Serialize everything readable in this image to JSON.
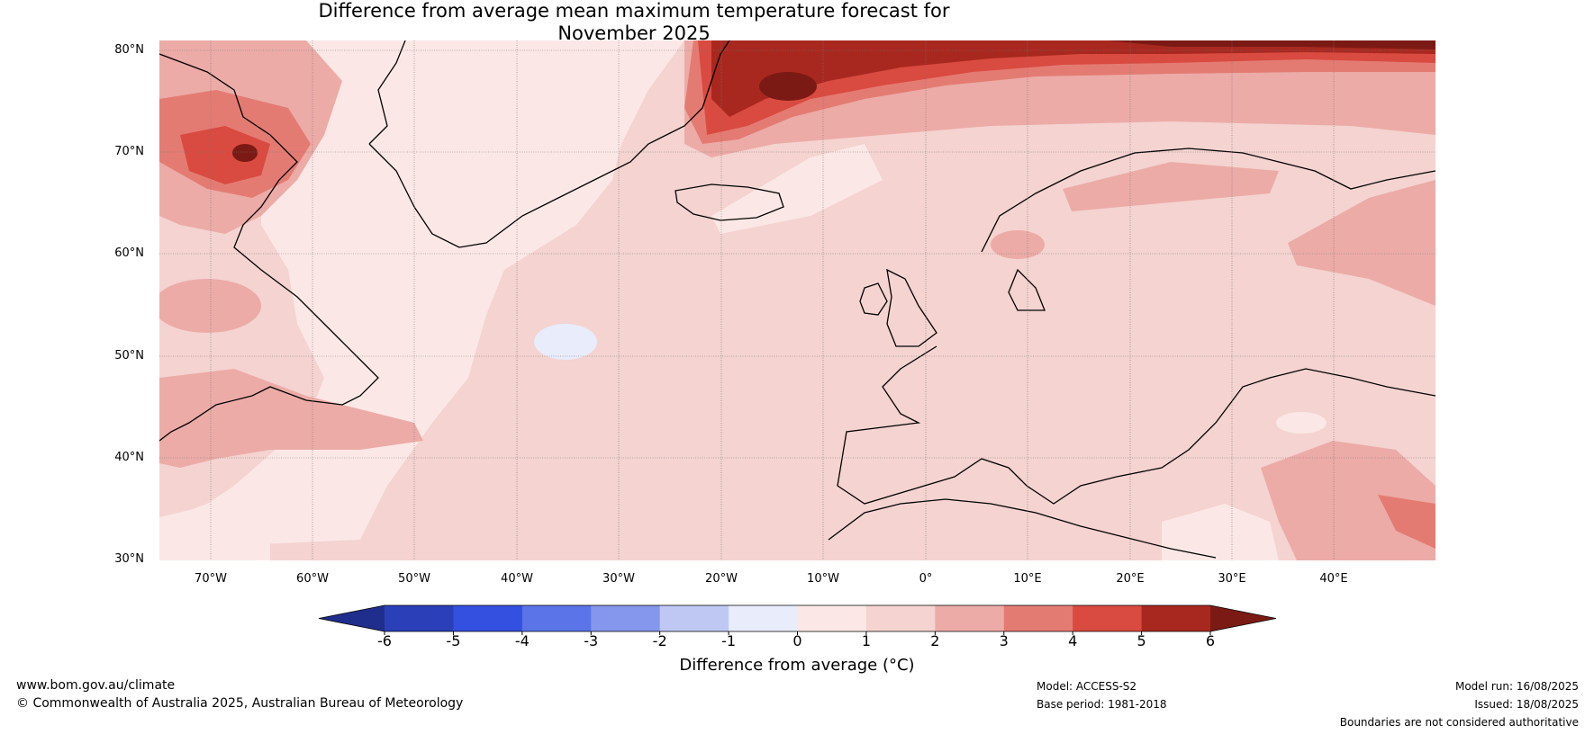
{
  "title_line1": "Difference from average mean maximum temperature forecast for",
  "title_line2": "November 2025",
  "lat_labels": [
    "80°N",
    "70°N",
    "60°N",
    "50°N",
    "40°N",
    "30°N"
  ],
  "lon_labels": [
    "70°W",
    "60°W",
    "50°W",
    "40°W",
    "30°W",
    "20°W",
    "10°W",
    "0°",
    "10°E",
    "20°E",
    "30°E",
    "40°E"
  ],
  "colorbar": {
    "ticks": [
      "-6",
      "-5",
      "-4",
      "-3",
      "-2",
      "-1",
      "0",
      "1",
      "2",
      "3",
      "4",
      "5",
      "6"
    ],
    "label": "Difference from average (",
    "unit": "°C",
    "label_end": ")",
    "colors": [
      "#1f2e8c",
      "#2a3fb8",
      "#3450e0",
      "#5b74e8",
      "#8597ec",
      "#bec8f3",
      "#e8ecfb",
      "#fbe8e6",
      "#f4d3d0",
      "#ecaba7",
      "#e47b73",
      "#d94a40",
      "#a8281f",
      "#7b1a14"
    ]
  },
  "footer": {
    "website": "www.bom.gov.au/climate",
    "copyright": "© Commonwealth of Australia 2025, Australian Bureau of Meteorology",
    "model": "Model: ACCESS-S2",
    "base_period": "Base period: 1981-2018",
    "model_run": "Model run: 16/08/2025",
    "issued": "Issued: 18/08/2025",
    "disclaimer": "Boundaries are not considered authoritative"
  }
}
